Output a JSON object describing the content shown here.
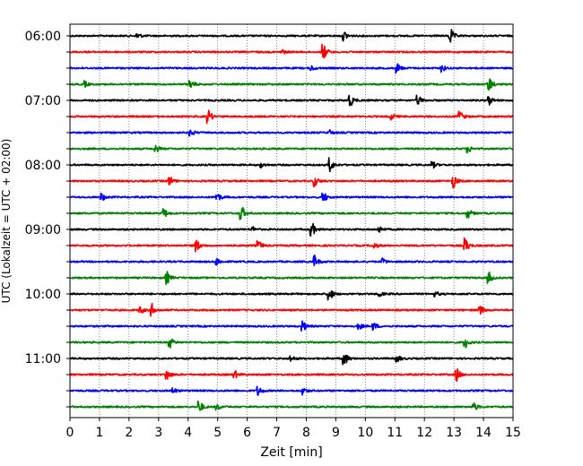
{
  "chart_data": {
    "type": "line",
    "title": "",
    "xlabel": "Zeit  [min]",
    "ylabel": "UTC (Lokalzeit = UTC + 02:00)",
    "xlim": [
      0,
      15
    ],
    "x_ticks": [
      "0",
      "1",
      "2",
      "3",
      "4",
      "5",
      "6",
      "7",
      "8",
      "9",
      "10",
      "11",
      "12",
      "13",
      "14",
      "15"
    ],
    "y_ticks": [
      "06:00",
      "07:00",
      "08:00",
      "09:00",
      "10:00",
      "11:00"
    ],
    "grid": "vertical-dotted",
    "trace_minutes": 15,
    "traces": [
      {
        "start": "06:00",
        "color": "#000000",
        "events": [
          [
            12.9,
            1.0
          ],
          [
            9.3,
            0.6
          ],
          [
            2.3,
            0.4
          ]
        ]
      },
      {
        "start": "06:15",
        "color": "#ff0000",
        "events": [
          [
            8.6,
            1.0
          ],
          [
            7.2,
            0.3
          ]
        ]
      },
      {
        "start": "06:30",
        "color": "#0000ff",
        "events": [
          [
            11.1,
            0.6
          ],
          [
            12.6,
            0.5
          ],
          [
            8.2,
            0.3
          ]
        ]
      },
      {
        "start": "06:45",
        "color": "#008000",
        "events": [
          [
            14.2,
            1.0
          ],
          [
            4.1,
            0.6
          ],
          [
            0.5,
            0.4
          ]
        ]
      },
      {
        "start": "07:00",
        "color": "#000000",
        "events": [
          [
            9.5,
            0.8
          ],
          [
            11.8,
            0.6
          ],
          [
            14.2,
            0.6
          ]
        ]
      },
      {
        "start": "07:15",
        "color": "#ff0000",
        "events": [
          [
            4.7,
            0.9
          ],
          [
            13.2,
            0.8
          ],
          [
            10.9,
            0.4
          ]
        ]
      },
      {
        "start": "07:30",
        "color": "#0000ff",
        "events": [
          [
            4.1,
            0.5
          ],
          [
            8.8,
            0.3
          ]
        ]
      },
      {
        "start": "07:45",
        "color": "#008000",
        "events": [
          [
            2.9,
            0.6
          ],
          [
            13.5,
            0.5
          ]
        ]
      },
      {
        "start": "08:00",
        "color": "#000000",
        "events": [
          [
            8.8,
            1.0
          ],
          [
            12.3,
            0.4
          ],
          [
            6.5,
            0.3
          ]
        ]
      },
      {
        "start": "08:15",
        "color": "#ff0000",
        "events": [
          [
            8.3,
            0.7
          ],
          [
            13.0,
            0.9
          ],
          [
            3.4,
            0.6
          ]
        ]
      },
      {
        "start": "08:30",
        "color": "#0000ff",
        "events": [
          [
            8.6,
            0.7
          ],
          [
            1.1,
            0.5
          ],
          [
            5.0,
            0.6
          ]
        ]
      },
      {
        "start": "08:45",
        "color": "#008000",
        "events": [
          [
            5.8,
            1.2
          ],
          [
            3.2,
            0.6
          ],
          [
            13.5,
            0.6
          ]
        ]
      },
      {
        "start": "09:00",
        "color": "#000000",
        "events": [
          [
            8.2,
            1.0
          ],
          [
            10.5,
            0.4
          ],
          [
            6.2,
            0.3
          ]
        ]
      },
      {
        "start": "09:15",
        "color": "#ff0000",
        "events": [
          [
            4.3,
            0.8
          ],
          [
            13.4,
            1.0
          ],
          [
            6.4,
            0.6
          ],
          [
            10.3,
            0.4
          ]
        ]
      },
      {
        "start": "09:30",
        "color": "#0000ff",
        "events": [
          [
            8.3,
            0.8
          ],
          [
            5.0,
            0.5
          ],
          [
            10.6,
            0.4
          ]
        ]
      },
      {
        "start": "09:45",
        "color": "#008000",
        "events": [
          [
            3.3,
            0.8
          ],
          [
            14.2,
            0.7
          ]
        ]
      },
      {
        "start": "10:00",
        "color": "#000000",
        "events": [
          [
            8.8,
            0.9
          ],
          [
            10.5,
            0.3
          ],
          [
            12.4,
            0.3
          ]
        ]
      },
      {
        "start": "10:15",
        "color": "#ff0000",
        "events": [
          [
            2.8,
            0.8
          ],
          [
            13.9,
            0.7
          ],
          [
            2.4,
            0.5
          ]
        ]
      },
      {
        "start": "10:30",
        "color": "#0000ff",
        "events": [
          [
            7.9,
            0.7
          ],
          [
            10.3,
            0.5
          ],
          [
            9.8,
            0.4
          ]
        ]
      },
      {
        "start": "10:45",
        "color": "#008000",
        "events": [
          [
            3.4,
            0.7
          ],
          [
            13.4,
            0.7
          ]
        ]
      },
      {
        "start": "11:00",
        "color": "#000000",
        "events": [
          [
            9.3,
            1.0
          ],
          [
            11.1,
            0.5
          ],
          [
            7.5,
            0.4
          ]
        ]
      },
      {
        "start": "11:15",
        "color": "#ff0000",
        "events": [
          [
            3.3,
            0.7
          ],
          [
            13.1,
            0.9
          ],
          [
            5.6,
            0.5
          ]
        ]
      },
      {
        "start": "11:30",
        "color": "#0000ff",
        "events": [
          [
            6.4,
            0.6
          ],
          [
            7.9,
            0.5
          ],
          [
            3.5,
            0.4
          ]
        ]
      },
      {
        "start": "11:45",
        "color": "#008000",
        "events": [
          [
            4.4,
            0.8
          ],
          [
            13.7,
            0.5
          ],
          [
            5.0,
            0.4
          ]
        ]
      }
    ]
  }
}
